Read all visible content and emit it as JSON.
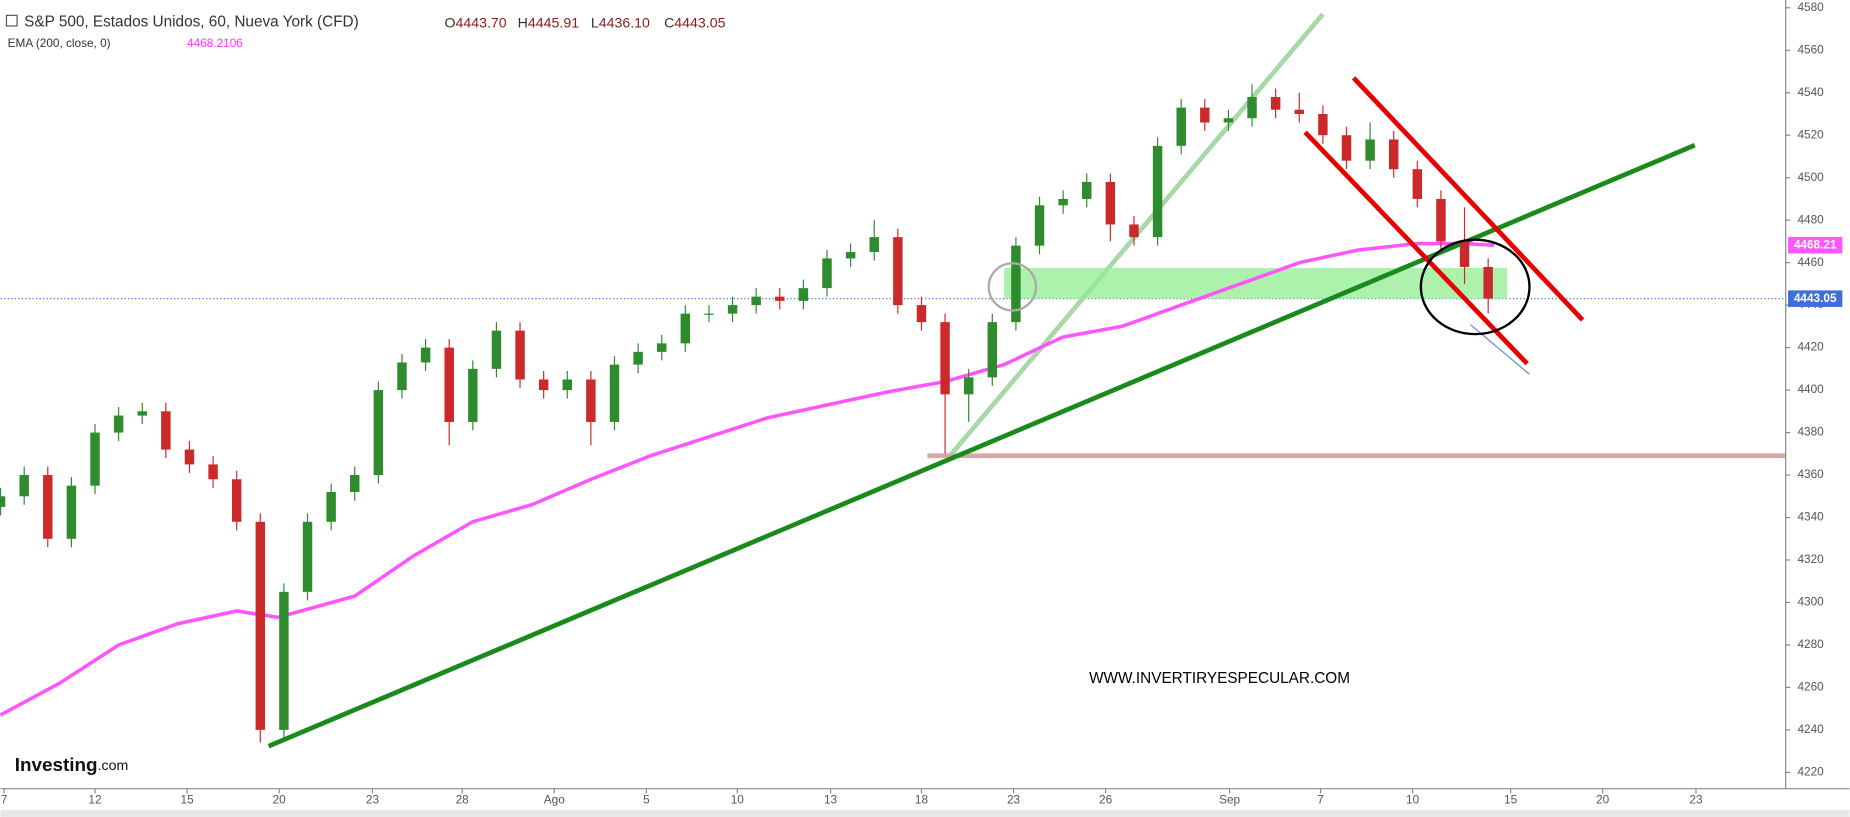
{
  "chart_data": {
    "type": "candlestick",
    "title": "S&P 500, Estados Unidos, 60, Nueva York (CFD)",
    "ohlc": [
      {
        "key": "O",
        "value": "4443.70"
      },
      {
        "key": "H",
        "value": "4445.91"
      },
      {
        "key": "L",
        "value": "4436.10"
      },
      {
        "key": "C",
        "value": "4443.05"
      }
    ],
    "indicator": "EMA (200, close, 0)",
    "indicator_value": "4468.2106",
    "watermark": "WWW.INVERTIRYESPECULAR.COM",
    "logo": "Investing",
    "logo_suffix": ".com",
    "up_color": "#2e8b2e",
    "down_color": "#cc2a2a",
    "ema_color": "#ff55ff",
    "last_color": "#3d6fd6",
    "x": [
      0,
      2,
      4,
      6,
      8,
      10,
      12,
      14,
      16,
      18,
      20,
      22,
      24,
      26,
      28,
      30,
      32,
      34,
      36,
      38,
      40,
      42,
      44,
      46,
      48,
      50,
      52,
      54,
      56,
      58,
      60,
      62,
      64,
      66,
      68,
      70,
      72,
      74,
      76,
      78,
      80,
      82,
      84,
      86,
      88,
      90,
      92,
      94,
      96,
      98,
      100,
      102,
      104,
      106,
      108,
      110,
      112,
      114,
      116,
      118,
      120,
      122,
      124,
      126
    ],
    "open": [
      4345,
      4350,
      4360,
      4330,
      4355,
      4380,
      4388,
      4390,
      4372,
      4365,
      4358,
      4338,
      4240,
      4305,
      4338,
      4352,
      4360,
      4400,
      4413,
      4420,
      4385,
      4410,
      4428,
      4405,
      4400,
      4405,
      4385,
      4412,
      4418,
      4422,
      4436,
      4436,
      4440,
      4444,
      4442,
      4448,
      4462,
      4465,
      4472,
      4440,
      4432,
      4398,
      4406,
      4432,
      4468,
      4487,
      4490,
      4498,
      4478,
      4472,
      4515,
      4533,
      4526,
      4528,
      4538,
      4532,
      4530,
      4520,
      4508,
      4518,
      4504,
      4490,
      4470,
      4458
    ],
    "high": [
      4354,
      4364,
      4364,
      4359,
      4384,
      4392,
      4394,
      4394,
      4376,
      4369,
      4362,
      4342,
      4309,
      4342,
      4356,
      4364,
      4404,
      4417,
      4424,
      4424,
      4414,
      4432,
      4432,
      4409,
      4409,
      4409,
      4416,
      4422,
      4426,
      4440,
      4440,
      4444,
      4448,
      4448,
      4452,
      4466,
      4469,
      4480,
      4476,
      4444,
      4436,
      4410,
      4436,
      4472,
      4491,
      4494,
      4502,
      4502,
      4482,
      4519,
      4537,
      4537,
      4532,
      4544,
      4542,
      4540,
      4534,
      4524,
      4526,
      4522,
      4508,
      4494,
      4486,
      4462
    ],
    "low": [
      4341,
      4346,
      4326,
      4326,
      4351,
      4376,
      4384,
      4368,
      4361,
      4354,
      4334,
      4234,
      4236,
      4301,
      4334,
      4348,
      4356,
      4396,
      4409,
      4374,
      4381,
      4406,
      4401,
      4396,
      4396,
      4374,
      4381,
      4408,
      4414,
      4418,
      4432,
      4432,
      4436,
      4438,
      4438,
      4444,
      4458,
      4461,
      4436,
      4428,
      4370,
      4385,
      4402,
      4428,
      4464,
      4483,
      4486,
      4470,
      4468,
      4468,
      4511,
      4522,
      4522,
      4524,
      4528,
      4526,
      4516,
      4504,
      4504,
      4500,
      4486,
      4466,
      4450,
      4436.1
    ],
    "close": [
      4350,
      4360,
      4330,
      4355,
      4380,
      4388,
      4390,
      4372,
      4365,
      4358,
      4338,
      4240,
      4305,
      4338,
      4352,
      4360,
      4400,
      4413,
      4420,
      4385,
      4410,
      4428,
      4405,
      4400,
      4405,
      4385,
      4412,
      4418,
      4422,
      4436,
      4436,
      4440,
      4444,
      4442,
      4448,
      4462,
      4465,
      4472,
      4440,
      4432,
      4398,
      4406,
      4432,
      4468,
      4487,
      4490,
      4498,
      4478,
      4472,
      4515,
      4533,
      4526,
      4528,
      4538,
      4532,
      4530,
      4520,
      4508,
      4518,
      4504,
      4490,
      4470,
      4458,
      4443.05
    ],
    "ema_x": [
      0,
      5,
      10,
      15,
      20,
      23.5,
      30,
      35,
      40,
      45,
      50,
      55,
      60,
      65,
      70,
      75,
      80,
      85,
      90,
      95,
      100,
      105,
      110,
      115,
      120,
      124,
      126.5
    ],
    "ema": [
      4247,
      4262,
      4280,
      4290,
      4296,
      4293,
      4303,
      4322,
      4338,
      4346,
      4358,
      4369,
      4378,
      4387,
      4393,
      4399,
      4404,
      4412,
      4425,
      4430,
      4440,
      4450,
      4460,
      4466,
      4469,
      4469,
      4468.21
    ],
    "ema_last": 4468.21,
    "last_price": 4443.05,
    "xlim": [
      0,
      151
    ],
    "ylim": [
      4214,
      4582
    ],
    "yticks": [
      4220,
      4240,
      4260,
      4280,
      4300,
      4320,
      4340,
      4360,
      4380,
      4400,
      4420,
      4440,
      4460,
      4480,
      4500,
      4520,
      4540,
      4560,
      4580
    ],
    "xticks": [
      {
        "value": 0.3,
        "label": "7"
      },
      {
        "value": 8,
        "label": "12"
      },
      {
        "value": 15.8,
        "label": "15"
      },
      {
        "value": 23.6,
        "label": "20"
      },
      {
        "value": 31.5,
        "label": "23"
      },
      {
        "value": 39.1,
        "label": "28"
      },
      {
        "value": 46.9,
        "label": "Ago"
      },
      {
        "value": 54.7,
        "label": "5"
      },
      {
        "value": 62.4,
        "label": "10"
      },
      {
        "value": 70.3,
        "label": "13"
      },
      {
        "value": 78,
        "label": "18"
      },
      {
        "value": 85.8,
        "label": "23"
      },
      {
        "value": 93.6,
        "label": "26"
      },
      {
        "value": 104.1,
        "label": "Sep"
      },
      {
        "value": 111.8,
        "label": "7"
      },
      {
        "value": 119.6,
        "label": "10"
      },
      {
        "value": 127.9,
        "label": "15"
      },
      {
        "value": 135.7,
        "label": "20"
      },
      {
        "value": 143.6,
        "label": "23"
      }
    ]
  }
}
